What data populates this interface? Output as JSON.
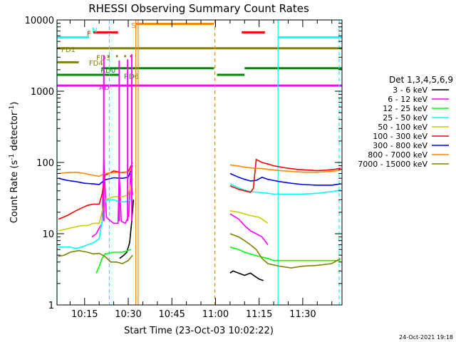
{
  "chart_data": {
    "type": "line",
    "title": "RHESSI Observing Summary Count Rates",
    "xlabel": "Start Time (23-Oct-03 10:02:22)",
    "ylabel_main": "Count Rate (s",
    "ylabel_exp1": "-1",
    "ylabel_mid": " detector",
    "ylabel_exp2": "-1",
    "ylabel_end": ")",
    "footer": "24-Oct-2021 19:18",
    "x_range_min": [
      5.5,
      103.5
    ],
    "y_range_log": [
      1,
      10000
    ],
    "y_ticks": [
      {
        "v": 1,
        "label": "1"
      },
      {
        "v": 10,
        "label": "10"
      },
      {
        "v": 100,
        "label": "100"
      },
      {
        "v": 1000,
        "label": "1000"
      },
      {
        "v": 10000,
        "label": "10000"
      }
    ],
    "x_ticks": [
      {
        "v": 15,
        "label": "10:15"
      },
      {
        "v": 30,
        "label": "10:30"
      },
      {
        "v": 45,
        "label": "10:45"
      },
      {
        "v": 60,
        "label": "11:00"
      },
      {
        "v": 75,
        "label": "11:15"
      },
      {
        "v": 90,
        "label": "11:30"
      }
    ],
    "legend_title": "Det 1,3,4,5,6,9",
    "legend_position": "right",
    "series": [
      {
        "name": "3 - 6 keV",
        "color": "#000000",
        "points": [
          [
            27,
            4.5
          ],
          [
            28.5,
            5
          ],
          [
            29.5,
            5.5
          ],
          [
            30.5,
            7.5
          ],
          [
            31.2,
            15
          ],
          [
            31.8,
            30
          ],
          [
            65,
            2.8
          ],
          [
            66,
            3
          ],
          [
            70,
            2.6
          ],
          [
            72,
            2.8
          ],
          [
            75,
            2.3
          ],
          [
            76.5,
            2.2
          ]
        ]
      },
      {
        "name": "6 - 12 keV",
        "color": "#ff00ff",
        "points": [
          [
            17.5,
            9
          ],
          [
            19,
            10
          ],
          [
            20,
            12
          ],
          [
            21,
            14
          ],
          [
            21.6,
            110
          ],
          [
            22.5,
            17
          ],
          [
            24,
            15
          ],
          [
            25,
            14
          ],
          [
            26.5,
            14
          ],
          [
            26.9,
            70
          ],
          [
            27.6,
            15
          ],
          [
            29,
            14
          ],
          [
            30.2,
            18
          ],
          [
            30.8,
            70
          ],
          [
            31.5,
            35
          ],
          [
            65,
            19
          ],
          [
            68,
            16
          ],
          [
            70,
            13
          ],
          [
            72,
            11
          ],
          [
            74,
            10
          ],
          [
            76,
            9
          ],
          [
            78,
            7
          ]
        ]
      },
      {
        "name": "12 - 25 keV",
        "color": "#00ff00",
        "points": [
          [
            19,
            2.8
          ],
          [
            20,
            3.5
          ],
          [
            21,
            4.5
          ],
          [
            22,
            5.2
          ],
          [
            25,
            5.5
          ],
          [
            28,
            5.5
          ],
          [
            31,
            6
          ],
          [
            65,
            6.5
          ],
          [
            68,
            6
          ],
          [
            70,
            5.5
          ],
          [
            72,
            5.2
          ],
          [
            75,
            4.8
          ],
          [
            78,
            4.5
          ],
          [
            80,
            4.2
          ],
          [
            90,
            4.2
          ],
          [
            103,
            4.2
          ]
        ]
      },
      {
        "name": "25 - 50 keV",
        "color": "#00ffff",
        "points": [
          [
            6,
            6.5
          ],
          [
            10,
            6.5
          ],
          [
            12,
            6.2
          ],
          [
            14,
            6.5
          ],
          [
            16,
            7
          ],
          [
            18,
            7.5
          ],
          [
            20,
            8.5
          ],
          [
            21,
            15
          ],
          [
            22,
            28
          ],
          [
            23,
            30
          ],
          [
            25,
            30
          ],
          [
            27,
            28
          ],
          [
            29,
            28
          ],
          [
            31,
            30
          ],
          [
            65,
            50
          ],
          [
            68,
            44
          ],
          [
            70,
            41
          ],
          [
            72,
            39
          ],
          [
            75,
            38
          ],
          [
            78,
            37
          ],
          [
            80,
            36
          ],
          [
            85,
            36
          ],
          [
            90,
            36
          ],
          [
            95,
            37
          ],
          [
            100,
            39
          ],
          [
            103,
            41
          ]
        ]
      },
      {
        "name": "50 - 100 keV",
        "color": "#cccc00",
        "points": [
          [
            6,
            11
          ],
          [
            10,
            12
          ],
          [
            14,
            13
          ],
          [
            16,
            13
          ],
          [
            18,
            14
          ],
          [
            20,
            14
          ],
          [
            22,
            30
          ],
          [
            25,
            33
          ],
          [
            28,
            33
          ],
          [
            30,
            35
          ],
          [
            31.5,
            60
          ],
          [
            65,
            21
          ],
          [
            68,
            20
          ],
          [
            70,
            19
          ],
          [
            72,
            18
          ],
          [
            75,
            17
          ],
          [
            76,
            16
          ],
          [
            78,
            14
          ]
        ]
      },
      {
        "name": "100 - 300 keV",
        "color": "#ff0000",
        "points": [
          [
            6,
            16
          ],
          [
            9,
            18
          ],
          [
            12,
            21
          ],
          [
            14,
            23
          ],
          [
            16,
            25
          ],
          [
            18,
            26
          ],
          [
            20,
            26
          ],
          [
            21,
            36
          ],
          [
            22,
            66
          ],
          [
            25,
            76
          ],
          [
            28,
            72
          ],
          [
            30,
            74
          ],
          [
            31.5,
            100
          ],
          [
            65,
            47
          ],
          [
            68,
            42
          ],
          [
            70,
            40
          ],
          [
            72,
            38
          ],
          [
            73,
            43
          ],
          [
            74,
            110
          ],
          [
            76,
            100
          ],
          [
            78,
            95
          ],
          [
            80,
            90
          ],
          [
            84,
            84
          ],
          [
            88,
            80
          ],
          [
            92,
            78
          ],
          [
            95,
            77
          ],
          [
            98,
            78
          ],
          [
            101,
            80
          ],
          [
            103,
            83
          ]
        ]
      },
      {
        "name": "300 - 800 keV",
        "color": "#0000ff",
        "points": [
          [
            6,
            60
          ],
          [
            9,
            56
          ],
          [
            12,
            54
          ],
          [
            15,
            51
          ],
          [
            18,
            50
          ],
          [
            20,
            49
          ],
          [
            22,
            57
          ],
          [
            25,
            61
          ],
          [
            28,
            60
          ],
          [
            30,
            62
          ],
          [
            31.5,
            90
          ],
          [
            65,
            70
          ],
          [
            68,
            62
          ],
          [
            70,
            58
          ],
          [
            72,
            55
          ],
          [
            74,
            56
          ],
          [
            76,
            62
          ],
          [
            78,
            58
          ],
          [
            82,
            54
          ],
          [
            86,
            51
          ],
          [
            90,
            49
          ],
          [
            95,
            48
          ],
          [
            100,
            48
          ],
          [
            103,
            50
          ]
        ]
      },
      {
        "name": "800 - 7000 keV",
        "color": "#ff8800",
        "points": [
          [
            6,
            70
          ],
          [
            9,
            72
          ],
          [
            12,
            73
          ],
          [
            15,
            70
          ],
          [
            18,
            66
          ],
          [
            20,
            64
          ],
          [
            22,
            70
          ],
          [
            25,
            72
          ],
          [
            28,
            73
          ],
          [
            30,
            74
          ],
          [
            31.5,
            80
          ],
          [
            65,
            92
          ],
          [
            68,
            89
          ],
          [
            70,
            86
          ],
          [
            72,
            84
          ],
          [
            74,
            83
          ],
          [
            76,
            82
          ],
          [
            78,
            80
          ],
          [
            82,
            77
          ],
          [
            86,
            75
          ],
          [
            90,
            73
          ],
          [
            95,
            73
          ],
          [
            100,
            75
          ],
          [
            103,
            78
          ]
        ]
      },
      {
        "name": "7000 - 15000 keV",
        "color": "#808000",
        "points": [
          [
            6,
            4.8
          ],
          [
            8,
            5
          ],
          [
            10,
            5.5
          ],
          [
            13,
            5.8
          ],
          [
            16,
            5.5
          ],
          [
            18,
            5.2
          ],
          [
            20,
            5.3
          ],
          [
            22,
            4.8
          ],
          [
            24,
            4
          ],
          [
            26,
            4
          ],
          [
            28,
            3.8
          ],
          [
            30,
            4.2
          ],
          [
            31.5,
            5
          ],
          [
            65,
            10
          ],
          [
            68,
            9
          ],
          [
            70,
            8
          ],
          [
            72,
            7
          ],
          [
            74,
            6
          ],
          [
            76,
            4.5
          ],
          [
            78,
            3.8
          ],
          [
            82,
            3.5
          ],
          [
            86,
            3.3
          ],
          [
            90,
            3.5
          ],
          [
            95,
            3.6
          ],
          [
            100,
            3.8
          ],
          [
            103,
            4.5
          ]
        ]
      }
    ],
    "flag_bars": [
      {
        "label": "N",
        "color": "#00ffff",
        "y": 5700,
        "segments": [
          [
            5.5,
            16.5
          ],
          [
            81.5,
            103.5
          ]
        ]
      },
      {
        "label": "F",
        "color": "#ff0000",
        "y": 6700,
        "segments": [
          [
            18,
            26.5
          ],
          [
            69,
            77
          ]
        ]
      },
      {
        "label": "S",
        "color": "#ff8800",
        "y": 8800,
        "segments": [
          [
            32.5,
            59.5
          ]
        ]
      },
      {
        "label": "FD1",
        "color": "#808000",
        "y": 4000,
        "segments": [
          [
            5.5,
            103.5
          ]
        ]
      },
      {
        "label": "FD3",
        "color": "#808000",
        "y": 3100,
        "segments": [
          [
            23,
            23.6
          ],
          [
            25.8,
            26.4
          ],
          [
            28.6,
            29.2
          ],
          [
            30.6,
            31.2
          ]
        ]
      },
      {
        "label": "FD4",
        "color": "#808000",
        "y": 2550,
        "segments": [
          [
            5.5,
            13
          ]
        ]
      },
      {
        "label": "RD0",
        "color": "#008800",
        "y": 2100,
        "segments": [
          [
            21,
            59.5
          ],
          [
            70,
            103.5
          ]
        ]
      },
      {
        "label": "RD6",
        "color": "#008800",
        "y": 1700,
        "segments": [
          [
            5.5,
            27
          ],
          [
            60.5,
            70
          ]
        ]
      },
      {
        "label": "AD",
        "color": "#ff00ff",
        "y": 1200,
        "segments": [
          [
            5.5,
            103.5
          ]
        ]
      }
    ],
    "flag_labels": [
      {
        "text": "N",
        "color": "#00ffff",
        "x": 17.5,
        "y": 7300
      },
      {
        "text": "F",
        "color": "#ff0000",
        "x": 15.8,
        "y": 6500
      },
      {
        "text": "S",
        "color": "#ff8800",
        "x": 31,
        "y": 8500
      },
      {
        "text": "FD1",
        "color": "#808000",
        "x": 7,
        "y": 3900
      },
      {
        "text": "FD3",
        "color": "#808000",
        "x": 19,
        "y": 3000
      },
      {
        "text": "FD4",
        "color": "#808000",
        "x": 16.5,
        "y": 2500
      },
      {
        "text": "RD0",
        "color": "#008800",
        "x": 20.5,
        "y": 2000
      },
      {
        "text": "RD6",
        "color": "#008800",
        "x": 28.5,
        "y": 1650
      },
      {
        "text": "AD",
        "color": "#ff00ff",
        "x": 20,
        "y": 1150
      }
    ],
    "vertical_lines": [
      {
        "x": 5.5,
        "color": "#00ffff",
        "dashed": false
      },
      {
        "x": 23.5,
        "color": "#00ffff",
        "dashed": true
      },
      {
        "x": 32.6,
        "color": "#ff8800",
        "dashed": false
      },
      {
        "x": 33.4,
        "color": "#ff8800",
        "dashed": false
      },
      {
        "x": 59.8,
        "color": "#ff8800",
        "dashed": true
      },
      {
        "x": 81.5,
        "color": "#00ffff",
        "dashed": false
      },
      {
        "x": 102.5,
        "color": "#00ffff",
        "dashed": true
      }
    ],
    "spikes": [
      {
        "x": 21.6,
        "color": "#ff00ff",
        "top": 3200
      },
      {
        "x": 26.9,
        "color": "#ff00ff",
        "top": 2700
      },
      {
        "x": 29.8,
        "color": "#ff00ff",
        "top": 2800
      },
      {
        "x": 31.2,
        "color": "#ff00ff",
        "top": 3300
      }
    ]
  }
}
